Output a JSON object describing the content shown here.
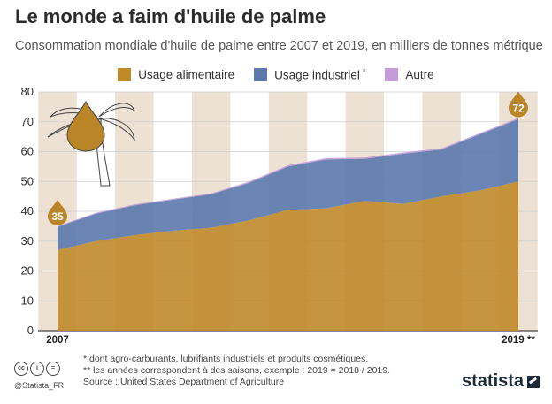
{
  "title": "Le monde a faim d'huile de palme",
  "subtitle": "Consommation mondiale d'huile de palme entre 2007 et 2019, en milliers de tonnes métrique",
  "legend": [
    {
      "label": "Usage alimentaire",
      "color": "#c08a2a"
    },
    {
      "label": "Usage industriel",
      "note": "*",
      "color": "#5b79ad"
    },
    {
      "label": "Autre",
      "color": "#c59ad9"
    }
  ],
  "chart_data": {
    "type": "area",
    "stacked": true,
    "x": [
      2007,
      2008,
      2009,
      2010,
      2011,
      2012,
      2013,
      2014,
      2015,
      2016,
      2017,
      2018,
      2019
    ],
    "x_tick_labels": [
      "2007",
      "",
      "",
      "",
      "",
      "",
      "",
      "",
      "",
      "",
      "",
      "",
      "2019 **"
    ],
    "ylim": [
      0,
      80
    ],
    "yticks": [
      0,
      10,
      20,
      30,
      40,
      50,
      60,
      70,
      80
    ],
    "grid": true,
    "series": [
      {
        "name": "Usage alimentaire",
        "color": "#c08a2a",
        "values": [
          27,
          30,
          32,
          33.5,
          34.5,
          37,
          40.5,
          41,
          43.5,
          42.5,
          45,
          47,
          50
        ]
      },
      {
        "name": "Usage industriel",
        "color": "#5b79ad",
        "values": [
          7.8,
          9.2,
          10,
          10.4,
          11.2,
          12.6,
          14.5,
          16.4,
          14.1,
          16.8,
          15.7,
          18.8,
          20.9
        ]
      },
      {
        "name": "Autre",
        "color": "#c59ad9",
        "values": [
          0.2,
          0.3,
          0.3,
          0.3,
          0.3,
          0.4,
          0.4,
          0.4,
          0.4,
          0.4,
          0.4,
          0.4,
          0.4
        ]
      }
    ],
    "annotations": [
      {
        "x": 2007,
        "label": "35"
      },
      {
        "x": 2019,
        "label": "72"
      }
    ]
  },
  "footer": {
    "cc_icons": [
      "cc",
      "i",
      "="
    ],
    "handle": "@Statista_FR",
    "note_1": "*   dont agro-carburants, lubrifiants industriels et produits cosmétiques.",
    "note_2": "** les années correspondent à des saisons, exemple : 2019 = 2018 / 2019.",
    "source": "Source : United States Department of Agriculture",
    "brand": "statista"
  }
}
